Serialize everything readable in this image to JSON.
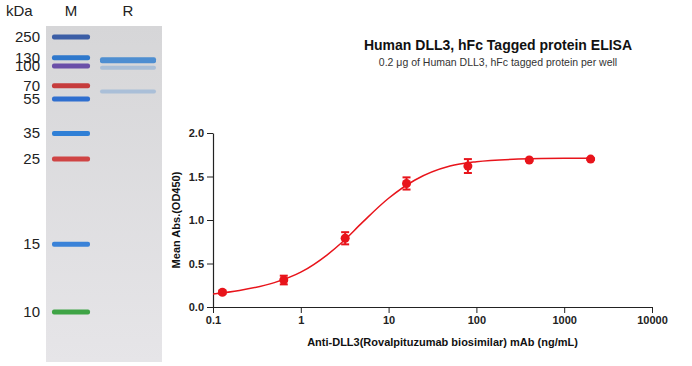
{
  "gel": {
    "unit": "kDa",
    "lanes": [
      "M",
      "R"
    ],
    "markers": [
      250,
      130,
      100,
      70,
      55,
      35,
      25,
      15,
      10
    ],
    "marker_colors": [
      "#3b5ea6",
      "#2f78cc",
      "#6a4fa8",
      "#c63c3c",
      "#2f6fcf",
      "#2f7fd6",
      "#cf4444",
      "#3a82d8",
      "#3fa446"
    ],
    "sample_bands": [
      120,
      95,
      62
    ],
    "color": "#3f86cf"
  },
  "chart_data": {
    "type": "scatter",
    "title": "Human DLL3, hFc Tagged protein ELISA",
    "subtitle": "0.2 μg of Human DLL3, hFc tagged protein per well",
    "x_label": "Anti-DLL3(Rovalpituzumab biosimilar) mAb (ng/mL)",
    "y_label": "Mean Abs.(OD450)",
    "log": "x",
    "grid": false,
    "xlim": [
      0.1,
      10000
    ],
    "xticks": [
      0.1,
      1,
      10,
      100,
      1000,
      10000
    ],
    "ylim": [
      0,
      2.0
    ],
    "yticks": [
      {
        "value": 0,
        "label": "0.0"
      },
      {
        "value": 0.5,
        "label": "0.5"
      },
      {
        "value": 1.0,
        "label": "1.0"
      },
      {
        "value": 1.5,
        "label": "1.5"
      },
      {
        "value": 2.0,
        "label": "2.0"
      }
    ],
    "series": [
      {
        "type": "scatter",
        "color": "#e8141b",
        "marker": "circle",
        "x": [
          0.128,
          0.64,
          3.2,
          16,
          80,
          400,
          2000
        ],
        "values": [
          0.17,
          0.31,
          0.79,
          1.42,
          1.62,
          1.69,
          1.7
        ],
        "errors": [
          0.02,
          0.05,
          0.07,
          0.07,
          0.08,
          0.01,
          0.01
        ]
      },
      {
        "type": "line",
        "color": "#e8141b",
        "line_style": "solid",
        "x": [
          0.1,
          0.2,
          0.5,
          1,
          2,
          3,
          5,
          10,
          20,
          50,
          100,
          300,
          1000,
          2000
        ],
        "values": [
          0.15,
          0.19,
          0.28,
          0.4,
          0.6,
          0.75,
          0.97,
          1.25,
          1.46,
          1.62,
          1.67,
          1.7,
          1.71,
          1.71
        ]
      }
    ]
  }
}
